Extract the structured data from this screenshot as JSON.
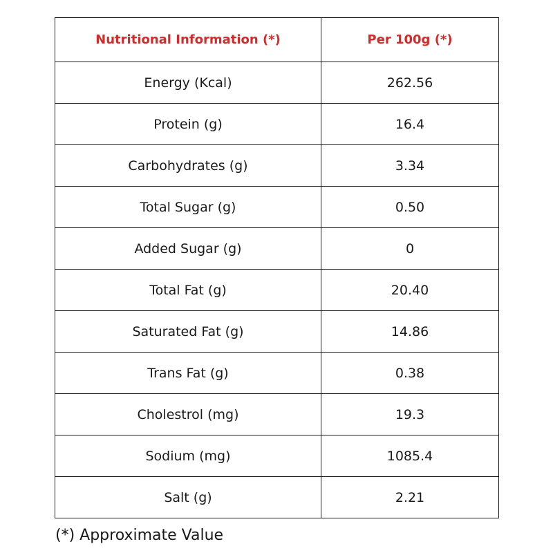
{
  "table": {
    "header": {
      "col1": "Nutritional Information (*)",
      "col2": "Per 100g (*)",
      "color": "#d32a2a"
    },
    "rows": [
      {
        "label": "Energy (Kcal)",
        "value": "262.56"
      },
      {
        "label": "Protein (g)",
        "value": "16.4"
      },
      {
        "label": "Carbohydrates (g)",
        "value": "3.34"
      },
      {
        "label": "Total Sugar (g)",
        "value": "0.50"
      },
      {
        "label": "Added Sugar (g)",
        "value": "0"
      },
      {
        "label": "Total Fat (g)",
        "value": "20.40"
      },
      {
        "label": "Saturated Fat (g)",
        "value": "14.86"
      },
      {
        "label": "Trans Fat (g)",
        "value": "0.38"
      },
      {
        "label": "Cholestrol (mg)",
        "value": "19.3"
      },
      {
        "label": "Sodium (mg)",
        "value": "1085.4"
      },
      {
        "label": "Salt (g)",
        "value": "2.21"
      }
    ]
  },
  "footnote": "(*) Approximate Value"
}
